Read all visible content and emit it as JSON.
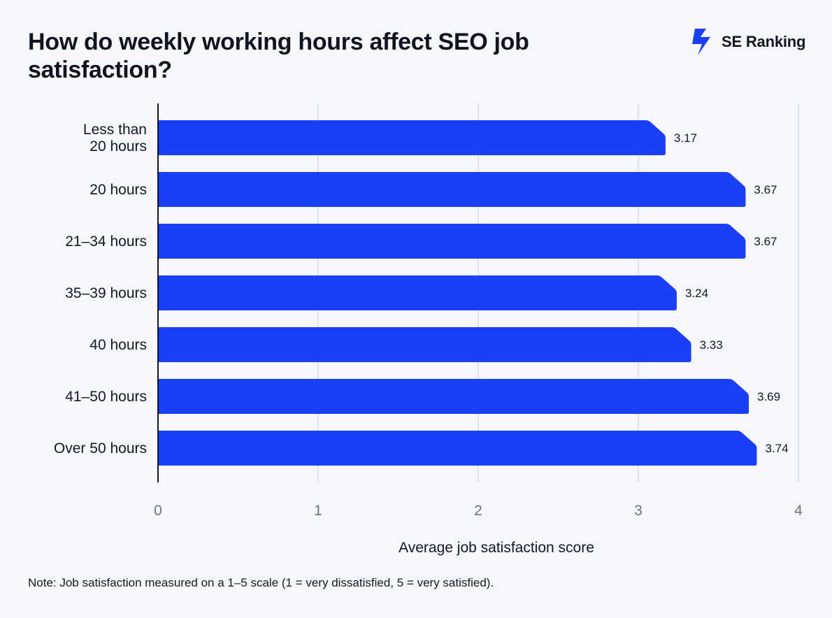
{
  "title": "How do weekly working hours affect SEO job satisfaction?",
  "brand": {
    "name": "SE Ranking",
    "icon": "lightning-logo-icon",
    "color": "#1b3ff5"
  },
  "note": "Note: Job satisfaction measured on a 1–5 scale (1 = very dissatisfied, 5 = very satisfied).",
  "chart_data": {
    "type": "bar",
    "orientation": "horizontal",
    "categories": [
      [
        "Less than",
        "20 hours"
      ],
      [
        "20 hours"
      ],
      [
        "21–34 hours"
      ],
      [
        "35–39 hours"
      ],
      [
        "40 hours"
      ],
      [
        "41–50 hours"
      ],
      [
        "Over 50 hours"
      ]
    ],
    "values": [
      3.17,
      3.67,
      3.67,
      3.24,
      3.33,
      3.69,
      3.74
    ],
    "data_labels": [
      "3.17",
      "3.67",
      "3.67",
      "3.24",
      "3.33",
      "3.69",
      "3.74"
    ],
    "xlabel": "Average job satisfaction score",
    "xlim": [
      0,
      4
    ],
    "xticks": [
      0,
      1,
      2,
      3,
      4
    ],
    "grid": true,
    "bar_color": "#1b3ff5",
    "grid_color": "#dfe3ec",
    "tick_color": "#6b7280"
  }
}
